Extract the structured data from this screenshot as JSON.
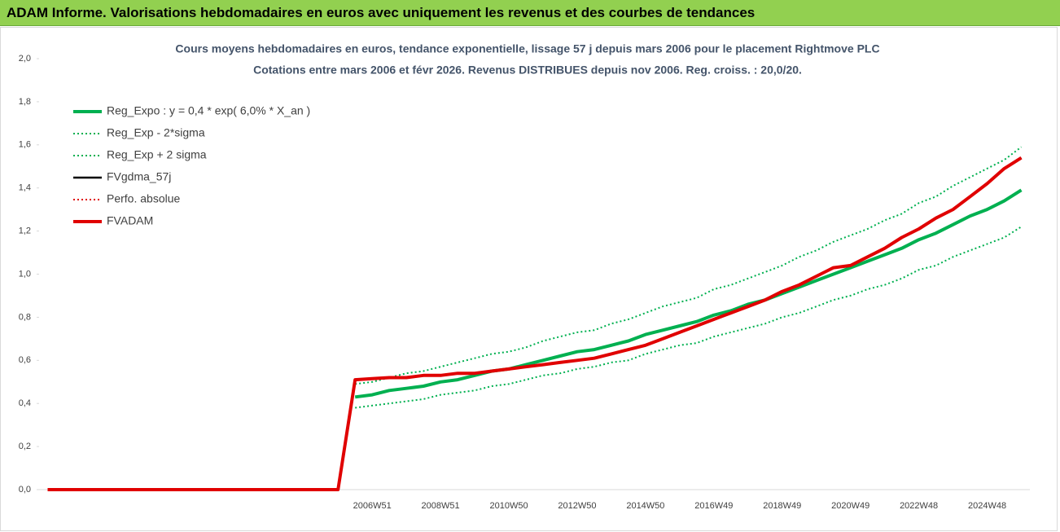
{
  "header": {
    "title": "ADAM Informe. Valorisations hebdomadaires en euros avec uniquement les revenus et des courbes de tendances"
  },
  "chart_data": {
    "type": "line",
    "title": "Cours moyens hebdomadaires en euros, tendance exponentielle, lissage 57 j depuis mars 2006 pour le placement Rightmove PLC",
    "subtitle": "Cotations entre mars 2006 et févr 2026. Revenus DISTRIBUES depuis nov 2006. Reg. croiss. : 20,0/20.",
    "categories": [
      null,
      null,
      null,
      null,
      null,
      null,
      null,
      null,
      null,
      null,
      null,
      null,
      null,
      null,
      null,
      null,
      null,
      null,
      null,
      "2006W51",
      null,
      null,
      null,
      "2008W51",
      null,
      null,
      null,
      "2010W50",
      null,
      null,
      null,
      "2012W50",
      null,
      null,
      null,
      "2014W50",
      null,
      null,
      null,
      "2016W49",
      null,
      null,
      null,
      "2018W49",
      null,
      null,
      null,
      "2020W49",
      null,
      null,
      null,
      "2022W48",
      null,
      null,
      null,
      "2024W48",
      null,
      null
    ],
    "ylim": [
      0,
      2
    ],
    "yticks": [
      {
        "value": 0,
        "label": "0,0"
      },
      {
        "value": 0.2,
        "label": "0,2"
      },
      {
        "value": 0.4,
        "label": "0,4"
      },
      {
        "value": 0.6,
        "label": "0,6"
      },
      {
        "value": 0.8,
        "label": "0,8"
      },
      {
        "value": 1,
        "label": "1,0"
      },
      {
        "value": 1.2,
        "label": "1,2"
      },
      {
        "value": 1.4,
        "label": "1,4"
      },
      {
        "value": 1.6,
        "label": "1,6"
      },
      {
        "value": 1.8,
        "label": "1,8"
      },
      {
        "value": 2,
        "label": "2,0"
      }
    ],
    "legend": "upper left",
    "series": [
      {
        "name": "Reg_Expo : y = 0,4 * exp( 6,0% *  X_an )",
        "color": "#00b050",
        "style": "thick",
        "values": [
          null,
          null,
          null,
          null,
          null,
          null,
          null,
          null,
          null,
          null,
          null,
          null,
          null,
          null,
          null,
          null,
          null,
          null,
          0.43,
          0.44,
          0.46,
          0.47,
          0.48,
          0.5,
          0.51,
          0.53,
          0.55,
          0.56,
          0.58,
          0.6,
          0.62,
          0.64,
          0.65,
          0.67,
          0.69,
          0.72,
          0.74,
          0.76,
          0.78,
          0.81,
          0.83,
          0.86,
          0.88,
          0.91,
          0.94,
          0.97,
          1.0,
          1.03,
          1.06,
          1.09,
          1.12,
          1.16,
          1.19,
          1.23,
          1.27,
          1.3,
          1.34,
          1.39
        ]
      },
      {
        "name": "Reg_Exp - 2*sigma",
        "color": "#00b050",
        "style": "dotted",
        "values": [
          null,
          null,
          null,
          null,
          null,
          null,
          null,
          null,
          null,
          null,
          null,
          null,
          null,
          null,
          null,
          null,
          null,
          null,
          0.38,
          0.39,
          0.4,
          0.41,
          0.42,
          0.44,
          0.45,
          0.46,
          0.48,
          0.49,
          0.51,
          0.53,
          0.54,
          0.56,
          0.57,
          0.59,
          0.6,
          0.63,
          0.65,
          0.67,
          0.68,
          0.71,
          0.73,
          0.75,
          0.77,
          0.8,
          0.82,
          0.85,
          0.88,
          0.9,
          0.93,
          0.95,
          0.98,
          1.02,
          1.04,
          1.08,
          1.11,
          1.14,
          1.17,
          1.22
        ]
      },
      {
        "name": "Reg_Exp + 2 sigma",
        "color": "#00b050",
        "style": "dotted",
        "values": [
          null,
          null,
          null,
          null,
          null,
          null,
          null,
          null,
          null,
          null,
          null,
          null,
          null,
          null,
          null,
          null,
          null,
          null,
          0.49,
          0.5,
          0.52,
          0.54,
          0.55,
          0.57,
          0.59,
          0.61,
          0.63,
          0.64,
          0.66,
          0.69,
          0.71,
          0.73,
          0.74,
          0.77,
          0.79,
          0.82,
          0.85,
          0.87,
          0.89,
          0.93,
          0.95,
          0.98,
          1.01,
          1.04,
          1.08,
          1.11,
          1.15,
          1.18,
          1.21,
          1.25,
          1.28,
          1.33,
          1.36,
          1.41,
          1.45,
          1.49,
          1.53,
          1.59
        ]
      },
      {
        "name": "FVgdma_57j",
        "color": "#000000",
        "style": "thin",
        "values": [
          0,
          0,
          0,
          0,
          0,
          0,
          0,
          0,
          0,
          0,
          0,
          0,
          0,
          0,
          0,
          0,
          0,
          0,
          0.51,
          0.515,
          0.52,
          0.52,
          0.53,
          0.53,
          0.54,
          0.54,
          0.55,
          0.56,
          0.57,
          0.58,
          0.59,
          0.6,
          0.61,
          0.63,
          0.65,
          0.67,
          0.7,
          0.73,
          0.76,
          0.79,
          0.82,
          0.85,
          0.88,
          0.92,
          0.95,
          0.99,
          1.03,
          1.04,
          1.08,
          1.12,
          1.17,
          1.21,
          1.26,
          1.3,
          1.36,
          1.42,
          1.49,
          1.54
        ]
      },
      {
        "name": "Perfo. absolue",
        "color": "#e00000",
        "style": "dotted",
        "values": [
          0,
          0,
          0,
          0,
          0,
          0,
          0,
          0,
          0,
          0,
          0,
          0,
          0,
          0,
          0,
          0,
          0,
          0,
          0.51,
          0.515,
          0.52,
          0.52,
          0.53,
          0.53,
          0.54,
          0.54,
          0.55,
          0.56,
          0.57,
          0.58,
          0.59,
          0.6,
          0.61,
          0.63,
          0.65,
          0.67,
          0.7,
          0.73,
          0.76,
          0.79,
          0.82,
          0.85,
          0.88,
          0.92,
          0.95,
          0.99,
          1.03,
          1.04,
          1.08,
          1.12,
          1.17,
          1.21,
          1.26,
          1.3,
          1.36,
          1.42,
          1.49,
          1.54
        ]
      },
      {
        "name": "FVADAM",
        "color": "#e00000",
        "style": "thick",
        "values": [
          0,
          0,
          0,
          0,
          0,
          0,
          0,
          0,
          0,
          0,
          0,
          0,
          0,
          0,
          0,
          0,
          0,
          0,
          0.51,
          0.515,
          0.52,
          0.52,
          0.53,
          0.53,
          0.54,
          0.54,
          0.55,
          0.56,
          0.57,
          0.58,
          0.59,
          0.6,
          0.61,
          0.63,
          0.65,
          0.67,
          0.7,
          0.73,
          0.76,
          0.79,
          0.82,
          0.85,
          0.88,
          0.92,
          0.95,
          0.99,
          1.03,
          1.04,
          1.08,
          1.12,
          1.17,
          1.21,
          1.26,
          1.3,
          1.36,
          1.42,
          1.49,
          1.54
        ]
      }
    ]
  }
}
